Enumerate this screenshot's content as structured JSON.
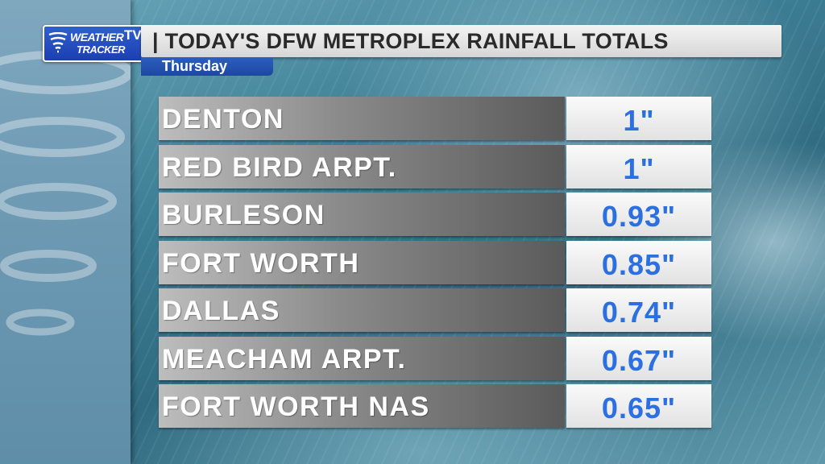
{
  "branding": {
    "logo_line1": "WEATHER",
    "logo_line2": "TRACKER",
    "logo_tv": "TV",
    "logo_icon": "tornado-icon"
  },
  "header": {
    "title": "| TODAY'S DFW METROPLEX RAINFALL TOTALS",
    "day": "Thursday"
  },
  "rainfall": [
    {
      "location": "DENTON",
      "total": "1\""
    },
    {
      "location": "RED BIRD ARPT.",
      "total": "1\""
    },
    {
      "location": "BURLESON",
      "total": "0.93\""
    },
    {
      "location": "FORT WORTH",
      "total": "0.85\""
    },
    {
      "location": "DALLAS",
      "total": "0.74\""
    },
    {
      "location": "MEACHAM ARPT.",
      "total": "0.67\""
    },
    {
      "location": "FORT WORTH NAS",
      "total": "0.65\""
    }
  ],
  "colors": {
    "value_text": "#2b6fe0",
    "logo_blue": "#1c3fb0",
    "day_tab": "#1e48a0"
  }
}
